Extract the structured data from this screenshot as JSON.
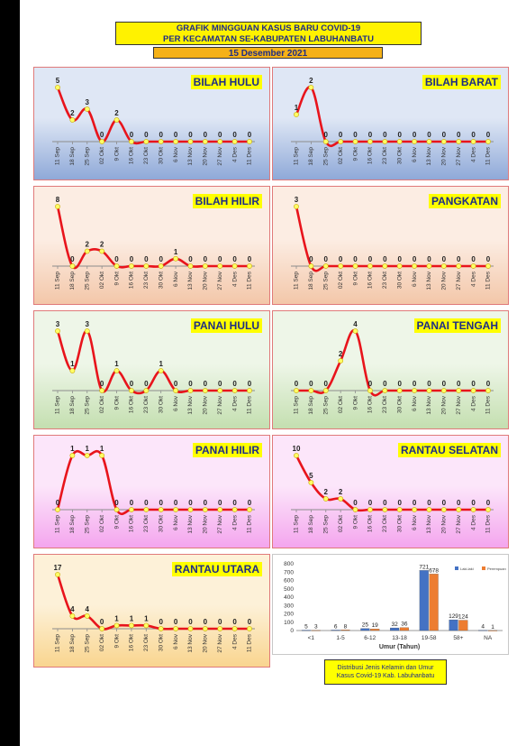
{
  "header": {
    "title_line1": "GRAFIK MINGGUAN KASUS BARU COVID-19",
    "title_line2": "PER KECAMATAN SE-KABUPATEN LABUHANBATU",
    "date": "15 Desember 2021"
  },
  "weeks": [
    "11 Sep",
    "18 Sep",
    "25 Sep",
    "02 Okt",
    "9 Okt",
    "16 Okt",
    "23 Okt",
    "30 Okt",
    "6 Nov",
    "13 Nov",
    "20 Nov",
    "27 Nov",
    "4 Des",
    "11 Des"
  ],
  "chart_data": [
    {
      "type": "line",
      "title": "BILAH HULU",
      "x": [
        "11 Sep",
        "18 Sep",
        "25 Sep",
        "02 Okt",
        "9 Okt",
        "16 Okt",
        "23 Okt",
        "30 Okt",
        "6 Nov",
        "13 Nov",
        "20 Nov",
        "27 Nov",
        "4 Des",
        "11 Des"
      ],
      "values": [
        5,
        2,
        3,
        0,
        2,
        0,
        0,
        0,
        0,
        0,
        0,
        0,
        0,
        0
      ],
      "bg": [
        "#8fa9d8",
        "#dfe7f5"
      ]
    },
    {
      "type": "line",
      "title": "BILAH BARAT",
      "x": [
        "11 Sep",
        "18 Sep",
        "25 Sep",
        "02 Okt",
        "9 Okt",
        "16 Okt",
        "23 Okt",
        "30 Okt",
        "6 Nov",
        "13 Nov",
        "20 Nov",
        "27 Nov",
        "4 Des",
        "11 Des"
      ],
      "values": [
        1,
        2,
        0,
        0,
        0,
        0,
        0,
        0,
        0,
        0,
        0,
        0,
        0,
        0
      ],
      "bg": [
        "#8fa9d8",
        "#dfe7f5"
      ]
    },
    {
      "type": "line",
      "title": "BILAH HILIR",
      "x": [
        "11 Sep",
        "18 Sep",
        "25 Sep",
        "02 Okt",
        "9 Okt",
        "16 Okt",
        "23 Okt",
        "30 Okt",
        "6 Nov",
        "13 Nov",
        "20 Nov",
        "27 Nov",
        "4 Des",
        "11 Des"
      ],
      "values": [
        8,
        0,
        2,
        2,
        0,
        0,
        0,
        0,
        1,
        0,
        0,
        0,
        0,
        0
      ],
      "bg": [
        "#f3c7a9",
        "#fcede3"
      ]
    },
    {
      "type": "line",
      "title": "PANGKATAN",
      "x": [
        "11 Sep",
        "18 Sep",
        "25 Sep",
        "02 Okt",
        "9 Okt",
        "16 Okt",
        "23 Okt",
        "30 Okt",
        "6 Nov",
        "13 Nov",
        "20 Nov",
        "27 Nov",
        "4 Des",
        "11 Des"
      ],
      "values": [
        3,
        0,
        0,
        0,
        0,
        0,
        0,
        0,
        0,
        0,
        0,
        0,
        0,
        0
      ],
      "bg": [
        "#f3c7a9",
        "#fcede3"
      ]
    },
    {
      "type": "line",
      "title": "PANAI HULU",
      "x": [
        "11 Sep",
        "18 Sep",
        "25 Sep",
        "02 Okt",
        "9 Okt",
        "16 Okt",
        "23 Okt",
        "30 Okt",
        "6 Nov",
        "13 Nov",
        "20 Nov",
        "27 Nov",
        "4 Des",
        "11 Des"
      ],
      "values": [
        3,
        1,
        3,
        0,
        1,
        0,
        0,
        1,
        0,
        0,
        0,
        0,
        0,
        0
      ],
      "bg": [
        "#c4dfb0",
        "#eef6e8"
      ]
    },
    {
      "type": "line",
      "title": "PANAI TENGAH",
      "x": [
        "11 Sep",
        "18 Sep",
        "25 Sep",
        "02 Okt",
        "9 Okt",
        "16 Okt",
        "23 Okt",
        "30 Okt",
        "6 Nov",
        "13 Nov",
        "20 Nov",
        "27 Nov",
        "4 Des",
        "11 Des"
      ],
      "values": [
        0,
        0,
        0,
        2,
        4,
        0,
        0,
        0,
        0,
        0,
        0,
        0,
        0,
        0
      ],
      "bg": [
        "#c4dfb0",
        "#eef6e8"
      ]
    },
    {
      "type": "line",
      "title": "PANAI HILIR",
      "x": [
        "11 Sep",
        "18 Sep",
        "25 Sep",
        "02 Okt",
        "9 Okt",
        "16 Okt",
        "23 Okt",
        "30 Okt",
        "6 Nov",
        "13 Nov",
        "20 Nov",
        "27 Nov",
        "4 Des",
        "11 Des"
      ],
      "values": [
        0,
        1,
        1,
        1,
        0,
        0,
        0,
        0,
        0,
        0,
        0,
        0,
        0,
        0
      ],
      "bg": [
        "#f4a5ee",
        "#fce6fa"
      ]
    },
    {
      "type": "line",
      "title": "RANTAU SELATAN",
      "x": [
        "11 Sep",
        "18 Sep",
        "25 Sep",
        "02 Okt",
        "9 Okt",
        "16 Okt",
        "23 Okt",
        "30 Okt",
        "6 Nov",
        "13 Nov",
        "20 Nov",
        "27 Nov",
        "4 Des",
        "11 Des"
      ],
      "values": [
        10,
        5,
        2,
        2,
        0,
        0,
        0,
        0,
        0,
        0,
        0,
        0,
        0,
        0
      ],
      "bg": [
        "#f4a5ee",
        "#fce6fa"
      ]
    },
    {
      "type": "line",
      "title": "RANTAU UTARA",
      "x": [
        "11 Sep",
        "18 Sep",
        "25 Sep",
        "02 Okt",
        "9 Okt",
        "16 Okt",
        "23 Okt",
        "30 Okt",
        "6 Nov",
        "13 Nov",
        "20 Nov",
        "27 Nov",
        "4 Des",
        "11 Des"
      ],
      "values": [
        17,
        4,
        4,
        0,
        1,
        1,
        1,
        0,
        0,
        0,
        0,
        0,
        0,
        0
      ],
      "bg": [
        "#f9d58f",
        "#fdf1d8"
      ]
    },
    {
      "type": "bar",
      "categories": [
        "<1",
        "1-5",
        "6-12",
        "13-18",
        "19-58",
        "58+",
        "NA"
      ],
      "series": [
        {
          "name": "Laki-laki",
          "values": [
            5,
            6,
            25,
            32,
            721,
            129,
            4
          ],
          "color": "#4472c4"
        },
        {
          "name": "Perempuan",
          "values": [
            3,
            8,
            19,
            36,
            678,
            124,
            1
          ],
          "color": "#ed7d31"
        }
      ],
      "xlabel": "Umur (Tahun)",
      "ylim": [
        0,
        800
      ],
      "yticks": [
        0,
        100,
        200,
        300,
        400,
        500,
        600,
        700,
        800
      ],
      "legend": "top-right"
    }
  ],
  "bar_caption": {
    "line1": "Distribusi Jenis Kelamin dan Umur",
    "line2": "Kasus Covid-19 Kab. Labuhanbatu"
  }
}
